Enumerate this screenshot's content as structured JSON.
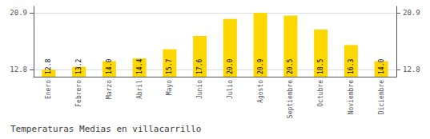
{
  "chart_data": {
    "type": "bar",
    "title": "Temperaturas Medias en villacarrillo",
    "categories": [
      "Enero",
      "Febrero",
      "Marzo",
      "Abril",
      "Mayo",
      "Junio",
      "Julio",
      "Agosto",
      "Septiembre",
      "Octubre",
      "Noviembre",
      "Diciembre"
    ],
    "values": [
      12.8,
      13.2,
      14.0,
      14.4,
      15.7,
      17.6,
      20.0,
      20.9,
      20.5,
      18.5,
      16.3,
      14.0
    ],
    "value_labels": [
      "12.8",
      "13.2",
      "14.0",
      "14.4",
      "15.7",
      "17.6",
      "20.0",
      "20.9",
      "20.5",
      "18.5",
      "16.3",
      "14.0"
    ],
    "color": "#FFD700",
    "ylim": [
      11.8,
      21.8
    ],
    "yticks": [
      12.8,
      20.9
    ],
    "grid": true,
    "data_labels": true
  }
}
